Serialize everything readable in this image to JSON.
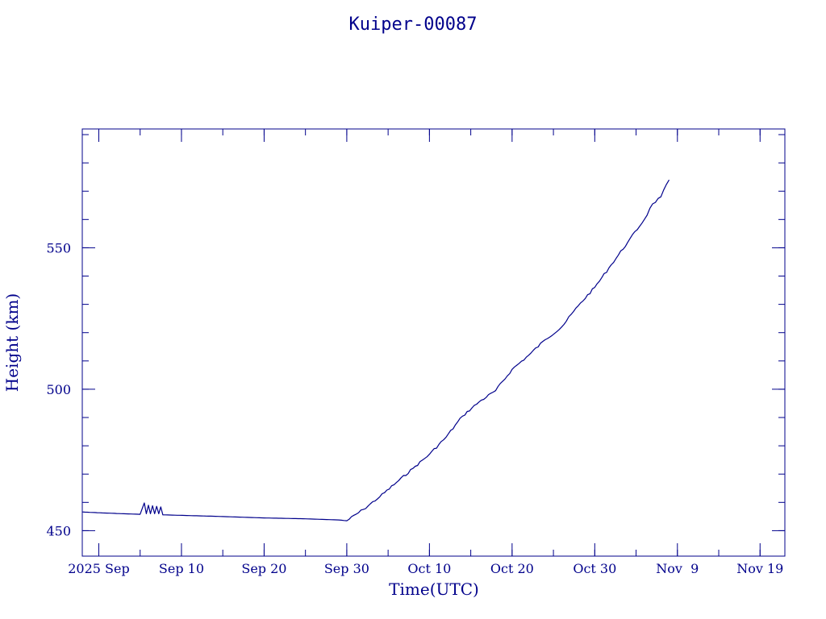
{
  "chart_data": {
    "type": "line",
    "title": "Kuiper-00087",
    "xlabel": "Time(UTC)",
    "ylabel": "Height (km)",
    "x_axis": {
      "type": "date",
      "range": [
        "2025-08-29",
        "2025-11-22"
      ],
      "tick_labels": [
        {
          "date": "2025-08-31",
          "label": "2025 Sep"
        },
        {
          "date": "2025-09-10",
          "label": "Sep 10"
        },
        {
          "date": "2025-09-20",
          "label": "Sep 20"
        },
        {
          "date": "2025-09-30",
          "label": "Sep 30"
        },
        {
          "date": "2025-10-10",
          "label": "Oct 10"
        },
        {
          "date": "2025-10-20",
          "label": "Oct 20"
        },
        {
          "date": "2025-10-30",
          "label": "Oct 30"
        },
        {
          "date": "2025-11-09",
          "label": "Nov  9"
        },
        {
          "date": "2025-11-19",
          "label": "Nov 19"
        }
      ],
      "minor_tick_days": 5
    },
    "y_axis": {
      "range": [
        441,
        592
      ],
      "major_ticks": [
        450,
        500,
        550
      ],
      "minor_tick_step": 10
    },
    "grid": false,
    "series": [
      {
        "points": [
          [
            "2025-08-29",
            456.6
          ],
          [
            "2025-09-01",
            456.2
          ],
          [
            "2025-09-05",
            455.8
          ],
          [
            "2025-09-05T12:00",
            459.8
          ],
          [
            "2025-09-05T18:00",
            456.0
          ],
          [
            "2025-09-06",
            459.0
          ],
          [
            "2025-09-06T06:00",
            456.0
          ],
          [
            "2025-09-06T12:00",
            458.8
          ],
          [
            "2025-09-06T18:00",
            456.0
          ],
          [
            "2025-09-07",
            458.6
          ],
          [
            "2025-09-07T06:00",
            456.0
          ],
          [
            "2025-09-07T12:00",
            458.4
          ],
          [
            "2025-09-07T18:00",
            455.6
          ],
          [
            "2025-09-15",
            455.0
          ],
          [
            "2025-09-20",
            454.5
          ],
          [
            "2025-09-25",
            454.2
          ],
          [
            "2025-09-29",
            453.8
          ],
          [
            "2025-09-30",
            453.5
          ],
          [
            "2025-10-02",
            457.5
          ],
          [
            "2025-10-04",
            462.0
          ],
          [
            "2025-10-06",
            467.0
          ],
          [
            "2025-10-08",
            472.0
          ],
          [
            "2025-10-10",
            477.0
          ],
          [
            "2025-10-12",
            483.0
          ],
          [
            "2025-10-14",
            490.5
          ],
          [
            "2025-10-16",
            495.5
          ],
          [
            "2025-10-18",
            499.5
          ],
          [
            "2025-10-20",
            507.0
          ],
          [
            "2025-10-22",
            512.0
          ],
          [
            "2025-10-24",
            517.5
          ],
          [
            "2025-10-26",
            522.0
          ],
          [
            "2025-10-28",
            529.5
          ],
          [
            "2025-10-30",
            536.0
          ],
          [
            "2025-11-01",
            544.0
          ],
          [
            "2025-11-03",
            552.0
          ],
          [
            "2025-11-05",
            560.0
          ],
          [
            "2025-11-06",
            565.5
          ],
          [
            "2025-11-07",
            568.0
          ],
          [
            "2025-11-08",
            574.0
          ]
        ]
      }
    ]
  }
}
